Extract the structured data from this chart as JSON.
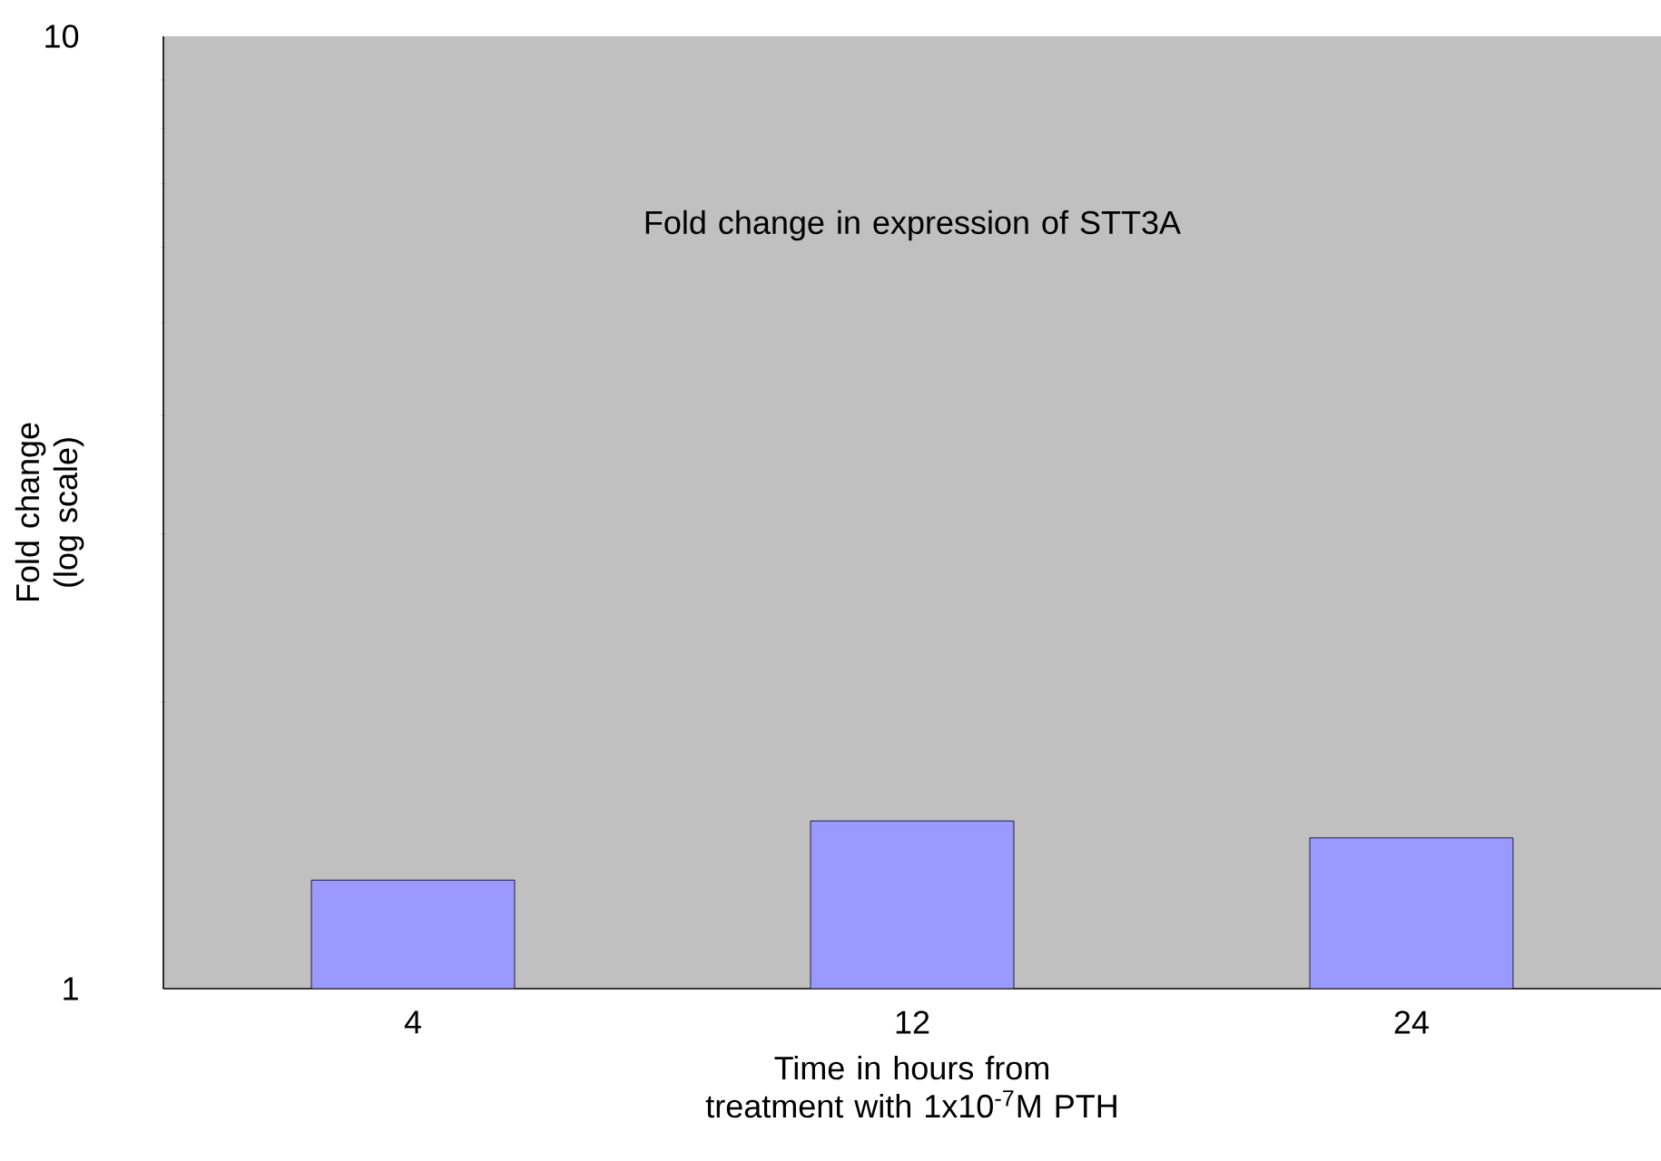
{
  "chart_data": {
    "type": "bar",
    "title": "Fold change in expression of STT3A",
    "xlabel": "Time in hours from treatment with 1x10$^{-7}$M PTH",
    "ylabel": "Fold change (log scale)",
    "categories": [
      "4",
      "12",
      "24"
    ],
    "values": [
      1.3,
      1.5,
      1.44
    ],
    "color": "#9999ff",
    "log": "y",
    "ylim": [
      1,
      10
    ],
    "yticks": [
      1,
      10
    ],
    "grid": false
  }
}
